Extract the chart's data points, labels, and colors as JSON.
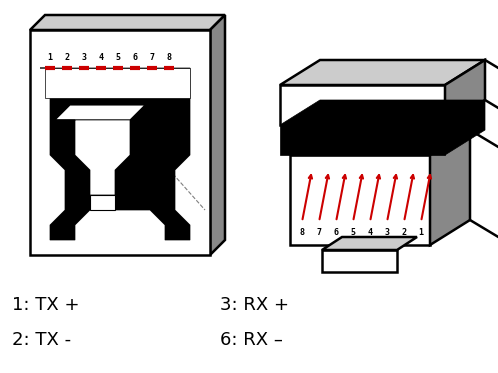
{
  "bg_color": "#ffffff",
  "text_color": "#000000",
  "red_color": "#cc0000",
  "labels_left": [
    "1: TX +",
    "2: TX -"
  ],
  "labels_right": [
    "3: RX +",
    "6: RX –"
  ],
  "pin_numbers_left": [
    "1",
    "2",
    "3",
    "4",
    "5",
    "6",
    "7",
    "8"
  ],
  "pin_numbers_right": [
    "8",
    "7",
    "6",
    "5",
    "4",
    "3",
    "2",
    "1"
  ],
  "fig_width": 4.98,
  "fig_height": 3.73
}
